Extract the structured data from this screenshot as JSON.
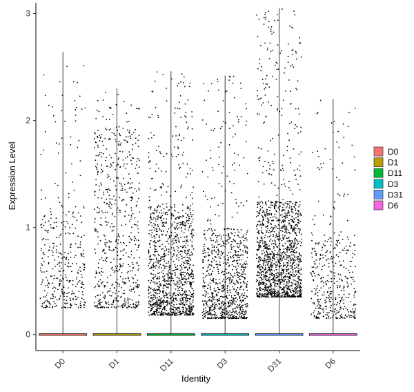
{
  "chart_data": {
    "type": "scatter",
    "subtype": "violin-jitter",
    "title": "",
    "xlabel": "Identity",
    "ylabel": "Expression Level",
    "categories": [
      "D0",
      "D1",
      "D11",
      "D3",
      "D31",
      "D6"
    ],
    "ylim": [
      -0.15,
      3.1
    ],
    "yticks": [
      0,
      1,
      2,
      3
    ],
    "grid": false,
    "legend": {
      "position": "right",
      "title": ""
    },
    "series": [
      {
        "name": "D0",
        "color": "#F8766D",
        "max": 2.64,
        "n_points": 380,
        "y_low": 0.25,
        "y_high_typical": 1.2,
        "y_max": 2.6
      },
      {
        "name": "D1",
        "color": "#B79F00",
        "max": 2.3,
        "n_points": 620,
        "y_low": 0.25,
        "y_high_typical": 1.95,
        "y_max": 2.3
      },
      {
        "name": "D11",
        "color": "#00BA38",
        "max": 2.46,
        "n_points": 1200,
        "y_low": 0.18,
        "y_high_typical": 1.2,
        "y_max": 2.46
      },
      {
        "name": "D3",
        "color": "#00BFC4",
        "max": 2.42,
        "n_points": 900,
        "y_low": 0.15,
        "y_high_typical": 1.0,
        "y_max": 2.42
      },
      {
        "name": "D31",
        "color": "#619CFF",
        "max": 3.05,
        "n_points": 1500,
        "y_low": 0.35,
        "y_high_typical": 1.25,
        "y_max": 3.05
      },
      {
        "name": "D6",
        "color": "#F564E3",
        "max": 2.2,
        "n_points": 420,
        "y_low": 0.15,
        "y_high_typical": 0.95,
        "y_max": 2.2
      }
    ]
  }
}
